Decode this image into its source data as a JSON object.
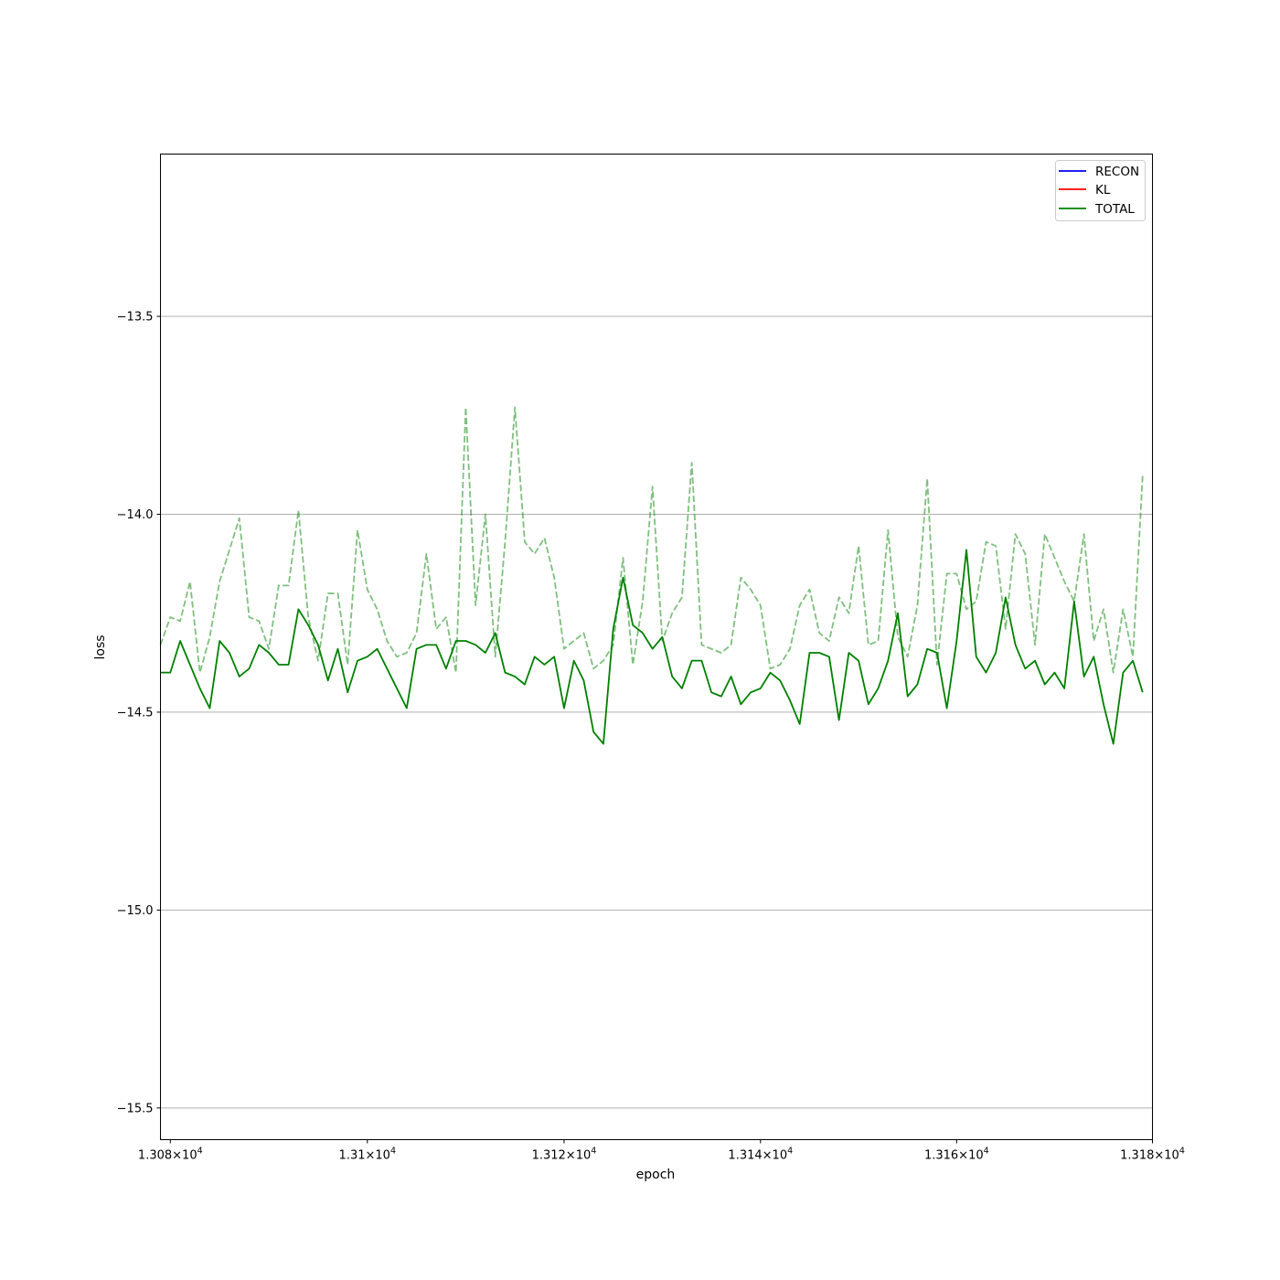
{
  "chart_data": {
    "type": "line",
    "xlabel": "epoch",
    "ylabel": "loss",
    "xscale": "log",
    "xlim": [
      13079,
      13180
    ],
    "ylim": [
      -15.58,
      -13.09
    ],
    "grid": "y-major",
    "legend_position": "top-right",
    "legend": [
      {
        "label": "RECON",
        "color": "#0000ff"
      },
      {
        "label": "KL",
        "color": "#ff0000"
      },
      {
        "label": "TOTAL",
        "color": "#008000"
      }
    ],
    "x_ticks": [
      {
        "value": 13080,
        "mantissa": "1.308",
        "base": "10",
        "exp": "4"
      },
      {
        "value": 13100,
        "mantissa": "1.31",
        "base": "10",
        "exp": "4"
      },
      {
        "value": 13120,
        "mantissa": "1.312",
        "base": "10",
        "exp": "4"
      },
      {
        "value": 13140,
        "mantissa": "1.314",
        "base": "10",
        "exp": "4"
      },
      {
        "value": 13160,
        "mantissa": "1.316",
        "base": "10",
        "exp": "4"
      },
      {
        "value": 13180,
        "mantissa": "1.318",
        "base": "10",
        "exp": "4"
      }
    ],
    "y_ticks": [
      {
        "value": -15.5,
        "label": "−15.5"
      },
      {
        "value": -15.0,
        "label": "−15.0"
      },
      {
        "value": -14.5,
        "label": "−14.5"
      },
      {
        "value": -14.0,
        "label": "−14.0"
      },
      {
        "value": -13.5,
        "label": "−13.5"
      }
    ],
    "x_start": 13079,
    "series": [
      {
        "name": "TOTAL",
        "color": "#008000",
        "style": "solid",
        "opacity": 1.0,
        "values": [
          -14.4,
          -14.4,
          -14.32,
          -14.38,
          -14.44,
          -14.49,
          -14.32,
          -14.35,
          -14.41,
          -14.39,
          -14.33,
          -14.35,
          -14.38,
          -14.38,
          -14.24,
          -14.28,
          -14.33,
          -14.42,
          -14.34,
          -14.45,
          -14.37,
          -14.36,
          -14.34,
          -14.39,
          -14.44,
          -14.49,
          -14.34,
          -14.33,
          -14.33,
          -14.39,
          -14.32,
          -14.32,
          -14.33,
          -14.35,
          -14.3,
          -14.4,
          -14.41,
          -14.43,
          -14.36,
          -14.38,
          -14.36,
          -14.49,
          -14.37,
          -14.42,
          -14.55,
          -14.58,
          -14.29,
          -14.16,
          -14.28,
          -14.3,
          -14.34,
          -14.31,
          -14.41,
          -14.44,
          -14.37,
          -14.37,
          -14.45,
          -14.46,
          -14.41,
          -14.48,
          -14.45,
          -14.44,
          -14.4,
          -14.42,
          -14.47,
          -14.53,
          -14.35,
          -14.35,
          -14.36,
          -14.52,
          -14.35,
          -14.37,
          -14.48,
          -14.44,
          -14.37,
          -14.25,
          -14.46,
          -14.43,
          -14.34,
          -14.35,
          -14.49,
          -14.32,
          -14.09,
          -14.36,
          -14.4,
          -14.35,
          -14.21,
          -14.33,
          -14.39,
          -14.37,
          -14.43,
          -14.4,
          -14.44,
          -14.22,
          -14.41,
          -14.36,
          -14.48,
          -14.58,
          -14.4,
          -14.37,
          -14.45
        ]
      },
      {
        "name": "",
        "color": "#008000",
        "style": "dashed",
        "opacity": 0.5,
        "values": [
          -14.33,
          -14.26,
          -14.27,
          -14.17,
          -14.4,
          -14.31,
          -14.17,
          -14.09,
          -14.01,
          -14.26,
          -14.27,
          -14.34,
          -14.18,
          -14.18,
          -13.99,
          -14.26,
          -14.37,
          -14.2,
          -14.2,
          -14.38,
          -14.04,
          -14.19,
          -14.24,
          -14.32,
          -14.36,
          -14.35,
          -14.3,
          -14.1,
          -14.29,
          -14.26,
          -14.4,
          -13.73,
          -14.23,
          -14.0,
          -14.36,
          -14.07,
          -13.73,
          -14.07,
          -14.1,
          -14.06,
          -14.16,
          -14.34,
          -14.32,
          -14.3,
          -14.39,
          -14.37,
          -14.33,
          -14.11,
          -14.38,
          -14.22,
          -13.93,
          -14.32,
          -14.25,
          -14.21,
          -13.87,
          -14.33,
          -14.34,
          -14.35,
          -14.33,
          -14.16,
          -14.19,
          -14.23,
          -14.39,
          -14.38,
          -14.34,
          -14.23,
          -14.19,
          -14.3,
          -14.32,
          -14.21,
          -14.25,
          -14.08,
          -14.33,
          -14.32,
          -14.04,
          -14.31,
          -14.36,
          -14.23,
          -13.91,
          -14.38,
          -14.15,
          -14.15,
          -14.24,
          -14.22,
          -14.07,
          -14.08,
          -14.29,
          -14.05,
          -14.1,
          -14.33,
          -14.05,
          -14.11,
          -14.17,
          -14.22,
          -14.05,
          -14.32,
          -14.24,
          -14.4,
          -14.24,
          -14.36,
          -13.9
        ]
      }
    ]
  }
}
